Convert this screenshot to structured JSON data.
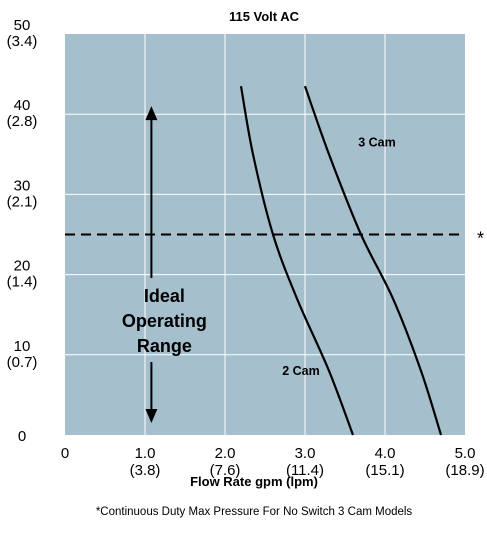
{
  "chart_data": {
    "type": "line",
    "title": "115 Volt AC",
    "xlabel": "Flow Rate gpm (lpm)",
    "ylabel": "",
    "xlim": [
      0,
      5
    ],
    "ylim": [
      0,
      50
    ],
    "grid": true,
    "plot_color": "#a6bfcc",
    "grid_color": "#ffffff",
    "x_ticks": [
      {
        "value": 0,
        "label": "0",
        "sub": ""
      },
      {
        "value": 1,
        "label": "1.0",
        "sub": "(3.8)"
      },
      {
        "value": 2,
        "label": "2.0",
        "sub": "(7.6)"
      },
      {
        "value": 3,
        "label": "3.0",
        "sub": "(11.4)"
      },
      {
        "value": 4,
        "label": "4.0",
        "sub": "(15.1)"
      },
      {
        "value": 5,
        "label": "5.0",
        "sub": "(18.9)"
      }
    ],
    "y_ticks": [
      {
        "value": 0,
        "label": "0",
        "sub": ""
      },
      {
        "value": 10,
        "label": "10",
        "sub": "(0.7)"
      },
      {
        "value": 20,
        "label": "20",
        "sub": "(1.4)"
      },
      {
        "value": 30,
        "label": "30",
        "sub": "(2.1)"
      },
      {
        "value": 40,
        "label": "40",
        "sub": "(2.8)"
      },
      {
        "value": 50,
        "label": "50",
        "sub": "(3.4)"
      }
    ],
    "series": [
      {
        "name": "2 Cam",
        "color": "#000000",
        "x": [
          2.2,
          2.35,
          2.6,
          2.9,
          3.3,
          3.6
        ],
        "y": [
          43.5,
          35,
          25,
          17,
          8,
          0
        ]
      },
      {
        "name": "3 Cam",
        "color": "#000000",
        "x": [
          3.0,
          3.3,
          3.7,
          4.1,
          4.45,
          4.7
        ],
        "y": [
          43.5,
          35,
          25,
          17,
          8,
          0
        ]
      }
    ],
    "series_label_positions": [
      {
        "series": "2 Cam",
        "x": 2.95,
        "y": 7.5
      },
      {
        "series": "3 Cam",
        "x": 3.9,
        "y": 36
      }
    ],
    "reference_line": {
      "y": 25,
      "style": "dashed",
      "marker": "*"
    },
    "annotation": {
      "lines": [
        "Ideal",
        "Operating",
        "Range"
      ],
      "x": 1.08,
      "arrow_top": 41,
      "arrow_bottom": 1.5
    },
    "footnote": "*Continuous  Duty Max Pressure For No Switch 3 Cam Models"
  }
}
